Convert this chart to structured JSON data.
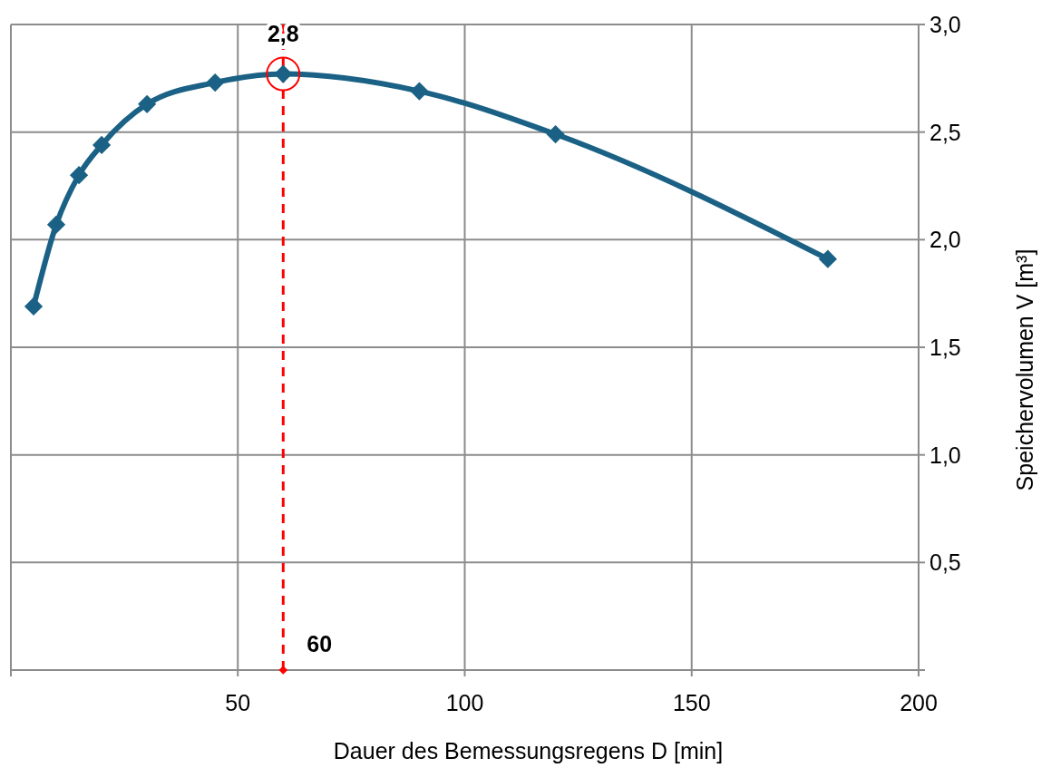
{
  "chart_data": {
    "type": "line",
    "xlabel": "Dauer des Bemessungsregens  D [min]",
    "ylabel": "Speichervolumen V [m³]",
    "x": [
      5,
      10,
      15,
      20,
      30,
      45,
      60,
      90,
      120,
      180
    ],
    "series": [
      {
        "color": "#1a6185",
        "values": [
          1.69,
          2.07,
          2.3,
          2.44,
          2.63,
          2.73,
          2.77,
          2.69,
          2.49,
          1.91
        ]
      }
    ],
    "xlim": [
      0,
      200
    ],
    "xticks": [
      {
        "value": 0,
        "label": null
      },
      50,
      100,
      150,
      200
    ],
    "ylim": [
      0,
      3
    ],
    "yticks": [
      {
        "value": 0,
        "label": null
      },
      {
        "value": 0.5,
        "label": "0,5"
      },
      {
        "value": 1,
        "label": "1,0"
      },
      {
        "value": 1.5,
        "label": "1,5"
      },
      {
        "value": 2,
        "label": "2,0"
      },
      {
        "value": 2.5,
        "label": "2,5"
      },
      {
        "value": 3,
        "label": "3,0"
      }
    ],
    "grid": true,
    "marker": "diamond",
    "line_style": "solid",
    "ref_lines": [
      {
        "axis": "x",
        "value": 60,
        "label": "60",
        "color": "#ff0000",
        "line_style": "dashed"
      }
    ],
    "annotations": [
      {
        "text": "2,8",
        "x": 60,
        "y": 2.77
      }
    ]
  }
}
